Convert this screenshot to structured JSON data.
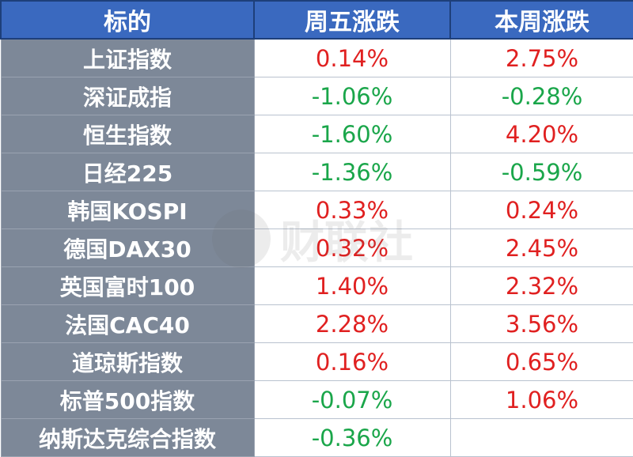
{
  "headers": [
    "标的",
    "周五涨跌",
    "本周涨跌"
  ],
  "rows": [
    {
      "name": "上证指数",
      "friday": "0.14%",
      "week": "2.75%"
    },
    {
      "name": "深证成指",
      "friday": "-1.06%",
      "week": "-0.28%"
    },
    {
      "name": "恒生指数",
      "friday": "-1.60%",
      "week": "4.20%"
    },
    {
      "name": "日经225",
      "friday": "-1.36%",
      "week": "-0.59%"
    },
    {
      "name": "韩国KOSPI",
      "friday": "0.33%",
      "week": "0.24%"
    },
    {
      "name": "德国DAX30",
      "friday": "0.32%",
      "week": "2.45%"
    },
    {
      "name": "英国富时100",
      "friday": "1.40%",
      "week": "2.32%"
    },
    {
      "name": "法国CAC40",
      "friday": "2.28%",
      "week": "3.56%"
    },
    {
      "name": "道琼斯指数",
      "friday": "0.16%",
      "week": "0.65%"
    },
    {
      "name": "标普500指数",
      "friday": "-0.07%",
      "week": "1.06%"
    },
    {
      "name": "纳斯达克综合指数",
      "friday": "-0.36%",
      "week": ""
    }
  ],
  "watermark": {
    "text": "财联社"
  },
  "colors": {
    "header_bg": "#3a69bf",
    "name_bg": "#7d8898",
    "up": "#e02020",
    "down": "#1aa64a"
  }
}
